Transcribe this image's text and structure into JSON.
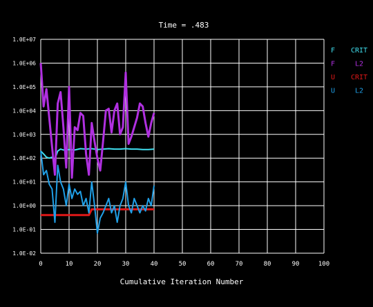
{
  "chart_data": {
    "type": "line",
    "title": "Time = .483",
    "xlabel": "Cumulative Iteration Number",
    "ylabel": "",
    "xlim": [
      0,
      100
    ],
    "ylim_log10": [
      -2,
      7
    ],
    "yscale": "log",
    "grid": true,
    "x_ticks": [
      "0",
      "10",
      "20",
      "30",
      "40",
      "50",
      "60",
      "70",
      "80",
      "90",
      "100"
    ],
    "y_ticks": [
      "1.0E-02",
      "1.0E-01",
      "1.0E+00",
      "1.0E+01",
      "1.0E+02",
      "1.0E+03",
      "1.0E+04",
      "1.0E+05",
      "1.0E+06",
      "1.0E+07"
    ],
    "legend_position": "top-right",
    "colors": {
      "background": "#000000",
      "grid": "#ffffff",
      "text": "#ffffff"
    },
    "series": [
      {
        "legend": [
          "F",
          "CRIT"
        ],
        "color": "#40e0f0",
        "stroke_width": 2,
        "x": [
          0,
          1,
          2,
          3,
          4,
          5,
          6,
          7,
          8,
          10,
          12,
          14,
          16,
          18,
          20,
          22,
          24,
          26,
          28,
          30,
          32,
          34,
          36,
          38,
          40
        ],
        "y": [
          200,
          150,
          110,
          100,
          110,
          90,
          200,
          240,
          220,
          230,
          220,
          250,
          240,
          250,
          230,
          240,
          250,
          240,
          240,
          250,
          240,
          240,
          230,
          230,
          240
        ]
      },
      {
        "legend": [
          "F",
          "L2"
        ],
        "color": "#b030e0",
        "stroke_width": 3,
        "x": [
          0,
          1,
          2,
          3,
          4,
          5,
          6,
          7,
          8,
          9,
          10,
          11,
          12,
          13,
          14,
          15,
          16,
          17,
          18,
          19,
          20,
          21,
          22,
          23,
          24,
          25,
          26,
          27,
          28,
          29,
          30,
          31,
          32,
          33,
          34,
          35,
          36,
          37,
          38,
          39,
          40
        ],
        "y": [
          1000000,
          15000,
          80000,
          5000,
          300,
          20,
          20000,
          60000,
          2000,
          40,
          100000,
          15,
          2000,
          1500,
          8000,
          6000,
          150,
          20,
          3000,
          500,
          100,
          30,
          500,
          10000,
          12000,
          1200,
          10000,
          20000,
          1000,
          2000,
          400000,
          400,
          800,
          2000,
          5000,
          20000,
          15000,
          3000,
          800,
          3000,
          8000
        ]
      },
      {
        "legend": [
          "U",
          "CRIT"
        ],
        "color": "#e01818",
        "stroke_width": 3,
        "x": [
          0,
          5,
          10,
          15,
          17,
          18,
          19,
          20,
          25,
          30,
          35,
          40
        ],
        "y": [
          0.4,
          0.4,
          0.4,
          0.4,
          0.4,
          0.7,
          0.7,
          0.7,
          0.7,
          0.7,
          0.7,
          0.7
        ]
      },
      {
        "legend": [
          "U",
          "L2"
        ],
        "color": "#20a0e8",
        "stroke_width": 2,
        "x": [
          0,
          1,
          2,
          3,
          4,
          5,
          6,
          7,
          8,
          9,
          10,
          11,
          12,
          13,
          14,
          15,
          16,
          17,
          18,
          19,
          20,
          21,
          22,
          23,
          24,
          25,
          26,
          27,
          28,
          29,
          30,
          31,
          32,
          33,
          34,
          35,
          36,
          37,
          38,
          39,
          40
        ],
        "y": [
          200,
          20,
          30,
          8,
          5,
          0.2,
          50,
          10,
          5,
          1,
          8,
          2,
          5,
          3,
          4,
          1,
          2,
          0.5,
          10,
          1,
          0.07,
          0.3,
          0.5,
          1,
          2,
          0.5,
          1,
          0.2,
          1,
          2,
          10,
          1,
          0.5,
          2,
          1,
          0.5,
          1,
          0.6,
          2,
          1,
          7
        ]
      }
    ]
  }
}
